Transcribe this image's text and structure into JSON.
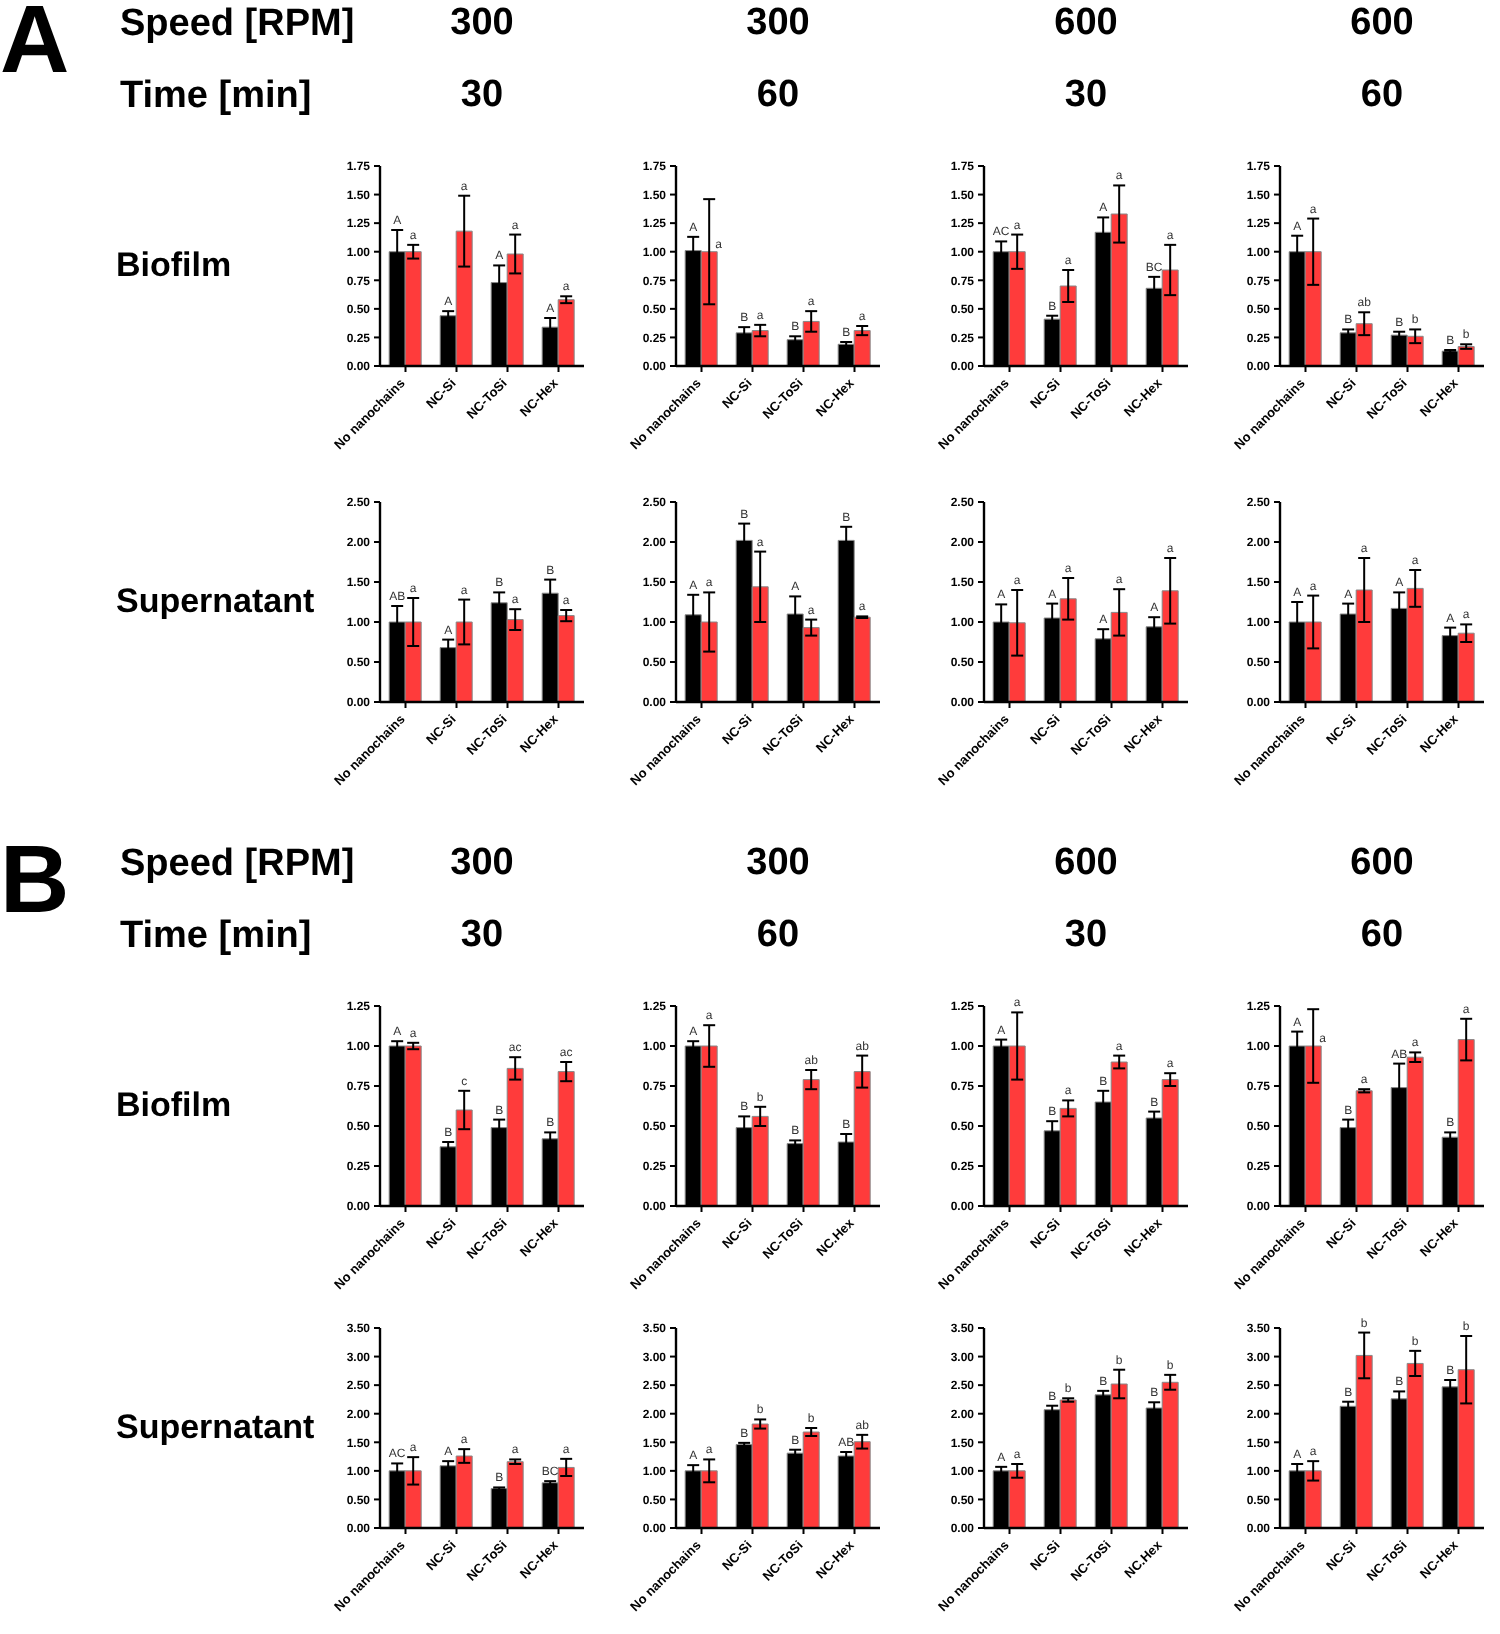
{
  "chart_data": [
    {
      "type": "bar",
      "title": "300",
      "subtitle": "30",
      "ylabel": "Biofilm",
      "annotations": [
        "A",
        "Speed [RPM]",
        "Time [min]"
      ],
      "categories": [
        "No nanochains",
        "NC-Si",
        "NC-ToSi",
        "NC-Hex"
      ],
      "ylim": [
        0,
        1.75
      ],
      "yticks": [
        {
          "value": 0,
          "label": "0.00"
        },
        {
          "value": 0.25,
          "label": "0.25"
        },
        {
          "value": 0.5,
          "label": "0.50"
        },
        {
          "value": 0.75,
          "label": "0.75"
        },
        {
          "value": 1,
          "label": "1.00"
        },
        {
          "value": 1.25,
          "label": "1.25"
        },
        {
          "value": 1.5,
          "label": "1.50"
        },
        {
          "value": 1.75,
          "label": "1.75"
        }
      ],
      "series": [
        {
          "color": "#000000",
          "values": [
            1.0,
            0.44,
            0.73,
            0.34
          ],
          "errors": [
            0.19,
            0.04,
            0.15,
            0.08
          ],
          "value_labels": [
            "A",
            "A",
            "A",
            "A"
          ]
        },
        {
          "color": "#ff3b3b",
          "values": [
            1.0,
            1.18,
            0.98,
            0.58
          ],
          "errors": [
            0.06,
            0.31,
            0.17,
            0.03
          ],
          "value_labels": [
            "a",
            "a",
            "a",
            "a"
          ]
        }
      ]
    },
    {
      "type": "bar",
      "title": "300",
      "subtitle": "60",
      "categories": [
        "No nanochains",
        "NC-Si",
        "NC-ToSi",
        "NC-Hex"
      ],
      "ylim": [
        0,
        1.75
      ],
      "yticks": [
        {
          "value": 0,
          "label": "0.00"
        },
        {
          "value": 0.25,
          "label": "0.25"
        },
        {
          "value": 0.5,
          "label": "0.50"
        },
        {
          "value": 0.75,
          "label": "0.75"
        },
        {
          "value": 1,
          "label": "1.00"
        },
        {
          "value": 1.25,
          "label": "1.25"
        },
        {
          "value": 1.5,
          "label": "1.50"
        },
        {
          "value": 1.75,
          "label": "1.75"
        }
      ],
      "series": [
        {
          "color": "#000000",
          "values": [
            1.01,
            0.29,
            0.23,
            0.19
          ],
          "errors": [
            0.12,
            0.05,
            0.03,
            0.02
          ],
          "value_labels": [
            "A",
            "B",
            "B",
            "B"
          ]
        },
        {
          "color": "#ff3b3b",
          "values": [
            1.0,
            0.31,
            0.39,
            0.31
          ],
          "errors": [
            0.46,
            0.05,
            0.09,
            0.04
          ],
          "value_labels": [
            "a",
            "a",
            "a",
            "a"
          ]
        }
      ]
    },
    {
      "type": "bar",
      "title": "600",
      "subtitle": "30",
      "categories": [
        "No nanochains",
        "NC-Si",
        "NC-ToSi",
        "NC-Hex"
      ],
      "ylim": [
        0,
        1.75
      ],
      "yticks": [
        {
          "value": 0,
          "label": "0.00"
        },
        {
          "value": 0.25,
          "label": "0.25"
        },
        {
          "value": 0.5,
          "label": "0.50"
        },
        {
          "value": 0.75,
          "label": "0.75"
        },
        {
          "value": 1,
          "label": "1.00"
        },
        {
          "value": 1.25,
          "label": "1.25"
        },
        {
          "value": 1.5,
          "label": "1.50"
        },
        {
          "value": 1.75,
          "label": "1.75"
        }
      ],
      "series": [
        {
          "color": "#000000",
          "values": [
            1.0,
            0.41,
            1.17,
            0.68
          ],
          "errors": [
            0.09,
            0.03,
            0.13,
            0.1
          ],
          "value_labels": [
            "AC",
            "B",
            "A",
            "BC"
          ]
        },
        {
          "color": "#ff3b3b",
          "values": [
            1.0,
            0.7,
            1.33,
            0.84
          ],
          "errors": [
            0.15,
            0.14,
            0.25,
            0.22
          ],
          "value_labels": [
            "a",
            "a",
            "a",
            "a"
          ]
        }
      ]
    },
    {
      "type": "bar",
      "title": "600",
      "subtitle": "60",
      "categories": [
        "No nanochains",
        "NC-Si",
        "NC-ToSi",
        "NC-Hex"
      ],
      "ylim": [
        0,
        1.75
      ],
      "yticks": [
        {
          "value": 0,
          "label": "0.00"
        },
        {
          "value": 0.25,
          "label": "0.25"
        },
        {
          "value": 0.5,
          "label": "0.50"
        },
        {
          "value": 0.75,
          "label": "0.75"
        },
        {
          "value": 1,
          "label": "1.00"
        },
        {
          "value": 1.25,
          "label": "1.25"
        },
        {
          "value": 1.5,
          "label": "1.50"
        },
        {
          "value": 1.75,
          "label": "1.75"
        }
      ],
      "series": [
        {
          "color": "#000000",
          "values": [
            1.0,
            0.29,
            0.27,
            0.13
          ],
          "errors": [
            0.14,
            0.03,
            0.03,
            0.01
          ],
          "value_labels": [
            "A",
            "B",
            "B",
            "B"
          ]
        },
        {
          "color": "#ff3b3b",
          "values": [
            1.0,
            0.37,
            0.26,
            0.17
          ],
          "errors": [
            0.29,
            0.1,
            0.06,
            0.02
          ],
          "value_labels": [
            "a",
            "ab",
            "b",
            "b"
          ]
        }
      ]
    },
    {
      "type": "bar",
      "ylabel": "Supernatant",
      "categories": [
        "No nanochains",
        "NC-Si",
        "NC-ToSi",
        "NC-Hex"
      ],
      "ylim": [
        0,
        2.5
      ],
      "yticks": [
        {
          "value": 0,
          "label": "0.00"
        },
        {
          "value": 0.5,
          "label": "0.50"
        },
        {
          "value": 1,
          "label": "1.00"
        },
        {
          "value": 1.5,
          "label": "1.50"
        },
        {
          "value": 2,
          "label": "2.00"
        },
        {
          "value": 2.5,
          "label": "2.50"
        }
      ],
      "series": [
        {
          "color": "#000000",
          "values": [
            1.0,
            0.68,
            1.24,
            1.36
          ],
          "errors": [
            0.2,
            0.1,
            0.13,
            0.17
          ],
          "value_labels": [
            "AB",
            "A",
            "B",
            "B"
          ]
        },
        {
          "color": "#ff3b3b",
          "values": [
            1.0,
            1.0,
            1.03,
            1.08
          ],
          "errors": [
            0.3,
            0.28,
            0.13,
            0.07
          ],
          "value_labels": [
            "a",
            "a",
            "a",
            "a"
          ]
        }
      ]
    },
    {
      "type": "bar",
      "categories": [
        "No nanochains",
        "NC-Si",
        "NC-ToSi",
        "NC-Hex"
      ],
      "ylim": [
        0,
        2.5
      ],
      "yticks": [
        {
          "value": 0,
          "label": "0.00"
        },
        {
          "value": 0.5,
          "label": "0.50"
        },
        {
          "value": 1,
          "label": "1.00"
        },
        {
          "value": 1.5,
          "label": "1.50"
        },
        {
          "value": 2,
          "label": "2.00"
        },
        {
          "value": 2.5,
          "label": "2.50"
        }
      ],
      "series": [
        {
          "color": "#000000",
          "values": [
            1.09,
            2.02,
            1.1,
            2.02
          ],
          "errors": [
            0.25,
            0.21,
            0.22,
            0.17
          ],
          "value_labels": [
            "A",
            "B",
            "A",
            "B"
          ]
        },
        {
          "color": "#ff3b3b",
          "values": [
            1.0,
            1.44,
            0.93,
            1.06
          ],
          "errors": [
            0.37,
            0.44,
            0.1,
            0.01
          ],
          "value_labels": [
            "a",
            "a",
            "a",
            "a"
          ]
        }
      ]
    },
    {
      "type": "bar",
      "categories": [
        "No nanochains",
        "NC-Si",
        "NC-ToSi",
        "NC-Hex"
      ],
      "ylim": [
        0,
        2.5
      ],
      "yticks": [
        {
          "value": 0,
          "label": "0.00"
        },
        {
          "value": 0.5,
          "label": "0.50"
        },
        {
          "value": 1,
          "label": "1.00"
        },
        {
          "value": 1.5,
          "label": "1.50"
        },
        {
          "value": 2,
          "label": "2.00"
        },
        {
          "value": 2.5,
          "label": "2.50"
        }
      ],
      "series": [
        {
          "color": "#000000",
          "values": [
            1.0,
            1.05,
            0.79,
            0.94
          ],
          "errors": [
            0.22,
            0.18,
            0.12,
            0.12
          ],
          "value_labels": [
            "A",
            "A",
            "A",
            "A"
          ]
        },
        {
          "color": "#ff3b3b",
          "values": [
            0.99,
            1.29,
            1.12,
            1.39
          ],
          "errors": [
            0.41,
            0.26,
            0.29,
            0.41
          ],
          "value_labels": [
            "a",
            "a",
            "a",
            "a"
          ]
        }
      ]
    },
    {
      "type": "bar",
      "categories": [
        "No nanochains",
        "NC-Si",
        "NC-ToSi",
        "NC-Hex"
      ],
      "ylim": [
        0,
        2.5
      ],
      "yticks": [
        {
          "value": 0,
          "label": "0.00"
        },
        {
          "value": 0.5,
          "label": "0.50"
        },
        {
          "value": 1,
          "label": "1.00"
        },
        {
          "value": 1.5,
          "label": "1.50"
        },
        {
          "value": 2,
          "label": "2.00"
        },
        {
          "value": 2.5,
          "label": "2.50"
        }
      ],
      "series": [
        {
          "color": "#000000",
          "values": [
            1.0,
            1.1,
            1.17,
            0.83
          ],
          "errors": [
            0.25,
            0.13,
            0.2,
            0.1
          ],
          "value_labels": [
            "A",
            "A",
            "A",
            "A"
          ]
        },
        {
          "color": "#ff3b3b",
          "values": [
            1.0,
            1.4,
            1.42,
            0.86
          ],
          "errors": [
            0.33,
            0.4,
            0.23,
            0.11
          ],
          "value_labels": [
            "a",
            "a",
            "a",
            "a"
          ]
        }
      ]
    },
    {
      "type": "bar",
      "title": "300",
      "subtitle": "30",
      "ylabel": "Biofilm",
      "annotations": [
        "B",
        "Speed [RPM]",
        "Time [min]"
      ],
      "categories": [
        "No nanochains",
        "NC-Si",
        "NC-ToSi",
        "NC-Hex"
      ],
      "ylim": [
        0,
        1.25
      ],
      "yticks": [
        {
          "value": 0,
          "label": "0.00"
        },
        {
          "value": 0.25,
          "label": "0.25"
        },
        {
          "value": 0.5,
          "label": "0.50"
        },
        {
          "value": 0.75,
          "label": "0.75"
        },
        {
          "value": 1,
          "label": "1.00"
        },
        {
          "value": 1.25,
          "label": "1.25"
        }
      ],
      "series": [
        {
          "color": "#000000",
          "values": [
            1.0,
            0.37,
            0.49,
            0.42
          ],
          "errors": [
            0.03,
            0.03,
            0.05,
            0.04
          ],
          "value_labels": [
            "A",
            "B",
            "B",
            "B"
          ]
        },
        {
          "color": "#ff3b3b",
          "values": [
            1.0,
            0.6,
            0.86,
            0.84
          ],
          "errors": [
            0.02,
            0.12,
            0.07,
            0.06
          ],
          "value_labels": [
            "a",
            "c",
            "ac",
            "ac"
          ]
        }
      ]
    },
    {
      "type": "bar",
      "title": "300",
      "subtitle": "60",
      "categories": [
        "No nanochains",
        "NC-Si",
        "NC-ToSi",
        "NC.Hex"
      ],
      "ylim": [
        0,
        1.25
      ],
      "yticks": [
        {
          "value": 0,
          "label": "0.00"
        },
        {
          "value": 0.25,
          "label": "0.25"
        },
        {
          "value": 0.5,
          "label": "0.50"
        },
        {
          "value": 0.75,
          "label": "0.75"
        },
        {
          "value": 1,
          "label": "1.00"
        },
        {
          "value": 1.25,
          "label": "1.25"
        }
      ],
      "series": [
        {
          "color": "#000000",
          "values": [
            1.0,
            0.49,
            0.39,
            0.4
          ],
          "errors": [
            0.03,
            0.07,
            0.02,
            0.05
          ],
          "value_labels": [
            "A",
            "B",
            "B",
            "B"
          ]
        },
        {
          "color": "#ff3b3b",
          "values": [
            1.0,
            0.56,
            0.79,
            0.84
          ],
          "errors": [
            0.13,
            0.06,
            0.06,
            0.1
          ],
          "value_labels": [
            "a",
            "b",
            "ab",
            "ab"
          ]
        }
      ]
    },
    {
      "type": "bar",
      "title": "600",
      "subtitle": "30",
      "categories": [
        "No nanochains",
        "NC-Si",
        "NC-ToSi",
        "NC-Hex"
      ],
      "ylim": [
        0,
        1.25
      ],
      "yticks": [
        {
          "value": 0,
          "label": "0.00"
        },
        {
          "value": 0.25,
          "label": "0.25"
        },
        {
          "value": 0.5,
          "label": "0.50"
        },
        {
          "value": 0.75,
          "label": "0.75"
        },
        {
          "value": 1,
          "label": "1.00"
        },
        {
          "value": 1.25,
          "label": "1.25"
        }
      ],
      "series": [
        {
          "color": "#000000",
          "values": [
            1.0,
            0.47,
            0.65,
            0.55
          ],
          "errors": [
            0.04,
            0.06,
            0.07,
            0.04
          ],
          "value_labels": [
            "A",
            "B",
            "B",
            "B"
          ]
        },
        {
          "color": "#ff3b3b",
          "values": [
            1.0,
            0.61,
            0.9,
            0.79
          ],
          "errors": [
            0.21,
            0.05,
            0.04,
            0.04
          ],
          "value_labels": [
            "a",
            "a",
            "a",
            "a"
          ]
        }
      ]
    },
    {
      "type": "bar",
      "title": "600",
      "subtitle": "60",
      "categories": [
        "No nanochains",
        "NC-Si",
        "NC-ToSi",
        "NC-Hex"
      ],
      "ylim": [
        0,
        1.25
      ],
      "yticks": [
        {
          "value": 0,
          "label": "0.00"
        },
        {
          "value": 0.25,
          "label": "0.25"
        },
        {
          "value": 0.5,
          "label": "0.50"
        },
        {
          "value": 0.75,
          "label": "0.75"
        },
        {
          "value": 1,
          "label": "1.00"
        },
        {
          "value": 1.25,
          "label": "1.25"
        }
      ],
      "series": [
        {
          "color": "#000000",
          "values": [
            1.0,
            0.49,
            0.74,
            0.43
          ],
          "errors": [
            0.09,
            0.05,
            0.15,
            0.03
          ],
          "value_labels": [
            "A",
            "B",
            "AB",
            "B"
          ]
        },
        {
          "color": "#ff3b3b",
          "values": [
            1.0,
            0.72,
            0.93,
            1.04
          ],
          "errors": [
            0.23,
            0.01,
            0.03,
            0.13
          ],
          "value_labels": [
            "a",
            "a",
            "a",
            "a"
          ]
        }
      ]
    },
    {
      "type": "bar",
      "ylabel": "Supernatant",
      "categories": [
        "No nanochains",
        "NC-Si",
        "NC-ToSi",
        "NC-Hex"
      ],
      "ylim": [
        0,
        3.5
      ],
      "yticks": [
        {
          "value": 0,
          "label": "0.00"
        },
        {
          "value": 0.5,
          "label": "0.50"
        },
        {
          "value": 1,
          "label": "1.00"
        },
        {
          "value": 1.5,
          "label": "1.50"
        },
        {
          "value": 2,
          "label": "2.00"
        },
        {
          "value": 2.5,
          "label": "2.50"
        },
        {
          "value": 3,
          "label": "3.00"
        },
        {
          "value": 3.5,
          "label": "3.50"
        }
      ],
      "series": [
        {
          "color": "#000000",
          "values": [
            1.0,
            1.09,
            0.69,
            0.79
          ],
          "errors": [
            0.13,
            0.08,
            0.02,
            0.03
          ],
          "value_labels": [
            "AC",
            "A",
            "B",
            "BC"
          ]
        },
        {
          "color": "#ff3b3b",
          "values": [
            1.0,
            1.26,
            1.16,
            1.06
          ],
          "errors": [
            0.24,
            0.12,
            0.04,
            0.15
          ],
          "value_labels": [
            "a",
            "a",
            "a",
            "a"
          ]
        }
      ]
    },
    {
      "type": "bar",
      "categories": [
        "No nanochains",
        "NC-Si",
        "NC-ToSi",
        "NC-Hex"
      ],
      "ylim": [
        0,
        3.5
      ],
      "yticks": [
        {
          "value": 0,
          "label": "0.00"
        },
        {
          "value": 0.5,
          "label": "0.50"
        },
        {
          "value": 1,
          "label": "1.00"
        },
        {
          "value": 1.5,
          "label": "1.50"
        },
        {
          "value": 2,
          "label": "2.00"
        },
        {
          "value": 2.5,
          "label": "2.50"
        },
        {
          "value": 3,
          "label": "3.00"
        },
        {
          "value": 3.5,
          "label": "3.50"
        }
      ],
      "series": [
        {
          "color": "#000000",
          "values": [
            1.0,
            1.46,
            1.31,
            1.26
          ],
          "errors": [
            0.1,
            0.03,
            0.06,
            0.07
          ],
          "value_labels": [
            "A",
            "B",
            "B",
            "AB"
          ]
        },
        {
          "color": "#ff3b3b",
          "values": [
            1.0,
            1.82,
            1.68,
            1.51
          ],
          "errors": [
            0.2,
            0.08,
            0.07,
            0.12
          ],
          "value_labels": [
            "a",
            "b",
            "b",
            "ab"
          ]
        }
      ]
    },
    {
      "type": "bar",
      "categories": [
        "No nanochains",
        "NC-Si",
        "NC-ToSi",
        "NC.Hex"
      ],
      "ylim": [
        0,
        3.5
      ],
      "yticks": [
        {
          "value": 0,
          "label": "0.00"
        },
        {
          "value": 0.5,
          "label": "0.50"
        },
        {
          "value": 1,
          "label": "1.00"
        },
        {
          "value": 1.5,
          "label": "1.50"
        },
        {
          "value": 2,
          "label": "2.00"
        },
        {
          "value": 2.5,
          "label": "2.50"
        },
        {
          "value": 3,
          "label": "3.00"
        },
        {
          "value": 3.5,
          "label": "3.50"
        }
      ],
      "series": [
        {
          "color": "#000000",
          "values": [
            1.0,
            2.07,
            2.33,
            2.1
          ],
          "errors": [
            0.07,
            0.07,
            0.07,
            0.1
          ],
          "value_labels": [
            "A",
            "B",
            "B",
            "B"
          ]
        },
        {
          "color": "#ff3b3b",
          "values": [
            1.0,
            2.24,
            2.52,
            2.55
          ],
          "errors": [
            0.12,
            0.03,
            0.25,
            0.13
          ],
          "value_labels": [
            "a",
            "b",
            "b",
            "b"
          ]
        }
      ]
    },
    {
      "type": "bar",
      "categories": [
        "No nanochains",
        "NC-Si",
        "NC-ToSi",
        "NC-Hex"
      ],
      "ylim": [
        0,
        3.5
      ],
      "yticks": [
        {
          "value": 0,
          "label": "0.00"
        },
        {
          "value": 0.5,
          "label": "0.50"
        },
        {
          "value": 1,
          "label": "1.00"
        },
        {
          "value": 1.5,
          "label": "1.50"
        },
        {
          "value": 2,
          "label": "2.00"
        },
        {
          "value": 2.5,
          "label": "2.50"
        },
        {
          "value": 3,
          "label": "3.00"
        },
        {
          "value": 3.5,
          "label": "3.50"
        }
      ],
      "series": [
        {
          "color": "#000000",
          "values": [
            1.0,
            2.13,
            2.26,
            2.47
          ],
          "errors": [
            0.12,
            0.08,
            0.13,
            0.12
          ],
          "value_labels": [
            "A",
            "B",
            "B",
            "B"
          ]
        },
        {
          "color": "#ff3b3b",
          "values": [
            1.0,
            3.02,
            2.88,
            2.77
          ],
          "errors": [
            0.17,
            0.4,
            0.22,
            0.59
          ],
          "value_labels": [
            "a",
            "b",
            "b",
            "b"
          ]
        }
      ]
    }
  ]
}
